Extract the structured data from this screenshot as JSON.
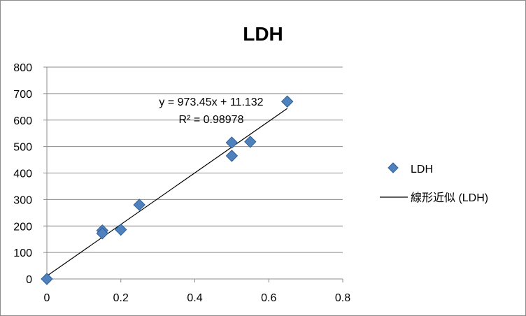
{
  "chart_data": {
    "type": "scatter",
    "title": "LDH",
    "xlabel": "",
    "ylabel": "",
    "xlim": [
      0,
      0.8
    ],
    "ylim": [
      0,
      800
    ],
    "x_ticks": [
      "0",
      "0.2",
      "0.4",
      "0.6",
      "0.8"
    ],
    "y_ticks": [
      "0",
      "100",
      "200",
      "300",
      "400",
      "500",
      "600",
      "700",
      "800"
    ],
    "grid": "horizontal",
    "legend_position": "right",
    "series": [
      {
        "name": "LDH",
        "marker": "diamond",
        "color": "#4f81bd",
        "points": [
          {
            "x": 0.0,
            "y": 0
          },
          {
            "x": 0.15,
            "y": 183
          },
          {
            "x": 0.15,
            "y": 172
          },
          {
            "x": 0.2,
            "y": 186
          },
          {
            "x": 0.25,
            "y": 280
          },
          {
            "x": 0.5,
            "y": 515
          },
          {
            "x": 0.5,
            "y": 465
          },
          {
            "x": 0.55,
            "y": 518
          },
          {
            "x": 0.65,
            "y": 670
          }
        ]
      }
    ],
    "trendline": {
      "type": "linear",
      "name": "線形近似 (LDH)",
      "slope": 973.45,
      "intercept": 11.132,
      "x_range": [
        0,
        0.65
      ],
      "equation_label": "y = 973.45x + 11.132",
      "r2_label": "R² = 0.98978"
    }
  }
}
